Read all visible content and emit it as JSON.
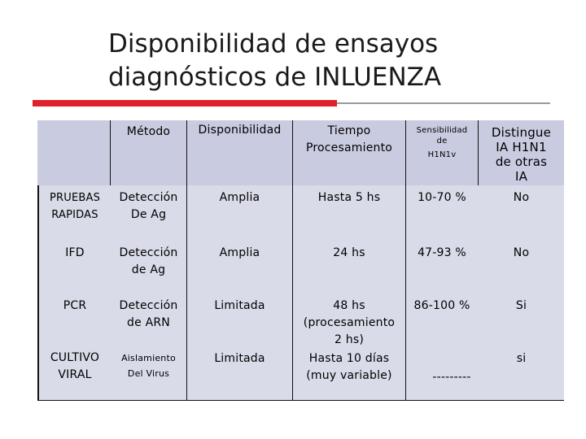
{
  "title": {
    "line1": "Disponibilidad de ensayos",
    "line2": "diagnósticos de INLUENZA"
  },
  "colors": {
    "accent_bar": "#e0202a",
    "rule": "#9a9a9a",
    "table_bg": "#d9dbe9"
  },
  "table": {
    "headers": {
      "metodo": "Método",
      "disponibilidad": "Disponibilidad",
      "tiempo_1": "Tiempo",
      "tiempo_2": "Procesamiento",
      "sens_1": "Sensibilidad",
      "sens_2": "de",
      "sens_3": "H1N1v",
      "dist_1": "Distingue",
      "dist_2": "IA H1N1",
      "dist_3": "de otras",
      "dist_4": "IA"
    },
    "rows": [
      {
        "label_1": "PRUEBAS",
        "label_2": "RAPIDAS",
        "metodo_1": "Detección",
        "metodo_2": "De Ag",
        "disponibilidad": "Amplia",
        "tiempo_1": "Hasta 5 hs",
        "sensibilidad": "10-70 %",
        "distingue": "No"
      },
      {
        "label_1": "IFD",
        "metodo_1": "Detección",
        "metodo_2": "de Ag",
        "disponibilidad": "Amplia",
        "tiempo_1": "24 hs",
        "sensibilidad": "47-93 %",
        "distingue": "No"
      },
      {
        "label_1": "PCR",
        "metodo_1": "Detección",
        "metodo_2": "de ARN",
        "disponibilidad": "Limitada",
        "tiempo_1": "48 hs",
        "tiempo_2": "(procesamiento",
        "tiempo_3": "2 hs)",
        "sensibilidad": "86-100 %",
        "distingue": "Si"
      },
      {
        "label_1": "CULTIVO",
        "label_2": "VIRAL",
        "metodo_1": "Aislamiento",
        "metodo_2": "Del Virus",
        "disponibilidad": "Limitada",
        "tiempo_1": "Hasta 10 días",
        "tiempo_2": "(muy variable)",
        "sensibilidad": "---------",
        "distingue": "si"
      }
    ]
  }
}
